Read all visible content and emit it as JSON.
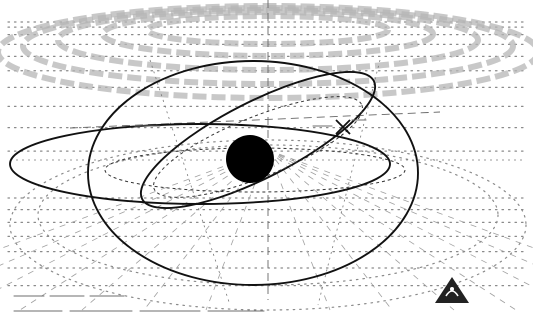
{
  "diagram": {
    "description_elements": [
      "perspective-grid",
      "concentric-rings",
      "orbit-ellipses",
      "central-body",
      "marker",
      "logo"
    ],
    "colors": {
      "background": "#ffffff",
      "ink": "#111111",
      "grid": "#8a8a8a",
      "central_body": "#000000",
      "logo": "#222222"
    }
  }
}
